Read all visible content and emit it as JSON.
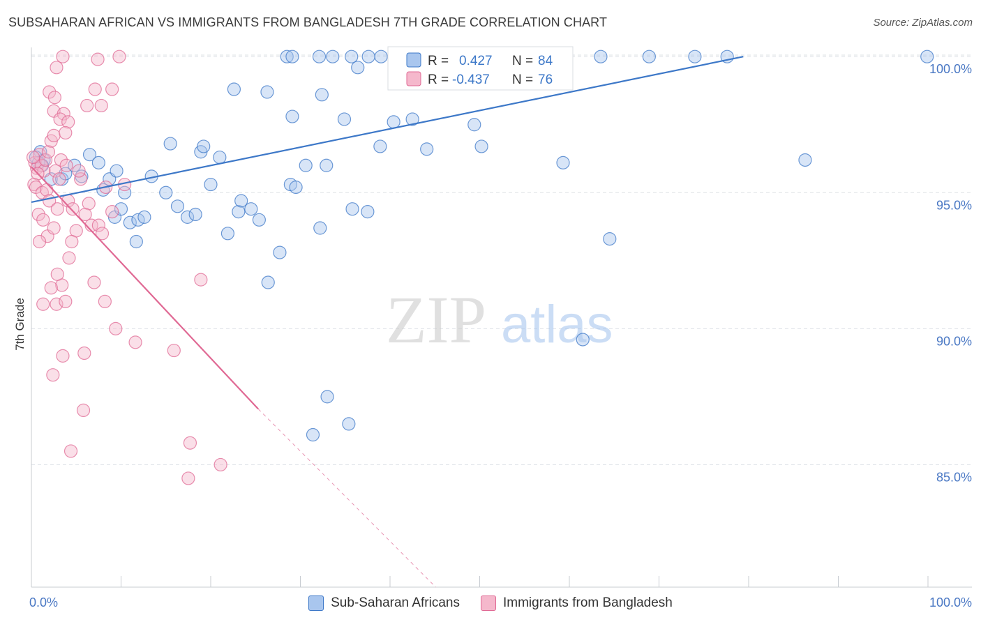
{
  "title": "SUBSAHARAN AFRICAN VS IMMIGRANTS FROM BANGLADESH 7TH GRADE CORRELATION CHART",
  "source": "Source: ZipAtlas.com",
  "watermark": {
    "zip": "ZIP",
    "atlas": "atlas"
  },
  "colors": {
    "blue": "#3d78c8",
    "blue_fill": "#a9c6ee",
    "pink": "#e06994",
    "pink_fill": "#f5b8cc",
    "grid": "#dde1e6",
    "tick_label": "#4a78c4"
  },
  "legend_top": [
    {
      "r_label": "R =",
      "r_value": "0.427",
      "n_label": "N =",
      "n_value": "84"
    },
    {
      "r_label": "R =",
      "r_value": "-0.437",
      "n_label": "N =",
      "n_value": "76"
    }
  ],
  "legend_bottom": [
    "Sub-Saharan Africans",
    "Immigrants from Bangladesh"
  ],
  "chart_data": {
    "type": "scatter",
    "title": "SUBSAHARAN AFRICAN VS IMMIGRANTS FROM BANGLADESH 7TH GRADE CORRELATION CHART",
    "xlabel": "",
    "ylabel": "7th Grade",
    "xlim": [
      0,
      100
    ],
    "ylim": [
      80.5,
      100.8
    ],
    "x_tick_labels": [
      "0.0%",
      "100.0%"
    ],
    "y_ticks": [
      85,
      90,
      95,
      100
    ],
    "y_tick_labels": [
      "85.0%",
      "90.0%",
      "95.0%",
      "100.0%"
    ],
    "grid": true,
    "legend_placement": "top-center",
    "series": [
      {
        "name": "Sub-Saharan Africans",
        "color": "#3d78c8",
        "r": 0.427,
        "n": 84,
        "trend": {
          "x": [
            0.0,
            79.4
          ],
          "y": [
            94.65,
            100.0
          ]
        },
        "points": [
          [
            1.0,
            96.5
          ],
          [
            1.4,
            96.2
          ],
          [
            0.5,
            96.3
          ],
          [
            1.2,
            96.0
          ],
          [
            0.8,
            96.1
          ],
          [
            2.2,
            95.5
          ],
          [
            3.4,
            95.5
          ],
          [
            3.8,
            95.7
          ],
          [
            4.8,
            96.0
          ],
          [
            5.6,
            95.6
          ],
          [
            6.5,
            96.4
          ],
          [
            7.5,
            96.1
          ],
          [
            8.7,
            95.5
          ],
          [
            9.3,
            94.1
          ],
          [
            10.0,
            94.4
          ],
          [
            11.0,
            93.9
          ],
          [
            11.7,
            93.2
          ],
          [
            11.9,
            94.0
          ],
          [
            12.6,
            94.1
          ],
          [
            13.4,
            95.6
          ],
          [
            15.0,
            95.0
          ],
          [
            16.3,
            94.5
          ],
          [
            17.4,
            94.1
          ],
          [
            18.3,
            94.2
          ],
          [
            18.9,
            96.5
          ],
          [
            20.0,
            95.3
          ],
          [
            21.0,
            96.3
          ],
          [
            21.9,
            93.5
          ],
          [
            23.1,
            94.3
          ],
          [
            23.4,
            94.7
          ],
          [
            24.5,
            94.4
          ],
          [
            25.4,
            94.0
          ],
          [
            26.4,
            91.7
          ],
          [
            27.7,
            92.8
          ],
          [
            28.9,
            95.3
          ],
          [
            29.5,
            95.2
          ],
          [
            30.6,
            96.0
          ],
          [
            32.2,
            93.7
          ],
          [
            32.9,
            96.0
          ],
          [
            35.8,
            94.4
          ],
          [
            37.5,
            94.3
          ],
          [
            38.9,
            96.7
          ],
          [
            40.4,
            97.6
          ],
          [
            42.5,
            97.7
          ],
          [
            44.1,
            96.6
          ],
          [
            15.5,
            96.8
          ],
          [
            19.2,
            96.7
          ],
          [
            22.6,
            98.8
          ],
          [
            26.3,
            98.7
          ],
          [
            29.1,
            97.8
          ],
          [
            32.4,
            98.6
          ],
          [
            34.9,
            97.7
          ],
          [
            36.4,
            99.6
          ],
          [
            31.4,
            86.1
          ],
          [
            33.0,
            87.5
          ],
          [
            35.4,
            86.5
          ],
          [
            32.1,
            100.0
          ],
          [
            41.0,
            100.0
          ],
          [
            47.3,
            100.0
          ],
          [
            52.6,
            100.0
          ],
          [
            57.6,
            100.0
          ],
          [
            63.5,
            100.0
          ],
          [
            68.9,
            100.0
          ],
          [
            74.0,
            100.0
          ],
          [
            77.6,
            100.0
          ],
          [
            99.9,
            100.0
          ],
          [
            28.5,
            100.0
          ],
          [
            29.1,
            100.0
          ],
          [
            33.6,
            100.0
          ],
          [
            35.7,
            100.0
          ],
          [
            37.6,
            100.0
          ],
          [
            39.0,
            100.0
          ],
          [
            53.1,
            99.1
          ],
          [
            59.3,
            96.1
          ],
          [
            64.5,
            93.3
          ],
          [
            86.3,
            96.2
          ],
          [
            61.5,
            89.6
          ],
          [
            8.0,
            95.1
          ],
          [
            9.5,
            95.8
          ],
          [
            10.4,
            95.0
          ],
          [
            44.7,
            99.1
          ],
          [
            46.7,
            99.3
          ],
          [
            49.4,
            97.5
          ],
          [
            50.2,
            96.7
          ]
        ]
      },
      {
        "name": "Immigrants from Bangladesh",
        "color": "#e06994",
        "r": -0.437,
        "n": 76,
        "trend": {
          "x": [
            0.0,
            25.3
          ],
          "y": [
            95.95,
            87.05
          ]
        },
        "trend_dashed": {
          "x": [
            25.3,
            45.1
          ],
          "y": [
            87.05,
            80.5
          ]
        },
        "points": [
          [
            0.4,
            96.1
          ],
          [
            0.6,
            95.9
          ],
          [
            0.9,
            96.4
          ],
          [
            1.1,
            96.0
          ],
          [
            1.4,
            95.8
          ],
          [
            1.6,
            96.2
          ],
          [
            0.2,
            96.3
          ],
          [
            0.7,
            95.7
          ],
          [
            1.9,
            96.5
          ],
          [
            2.2,
            96.9
          ],
          [
            2.5,
            97.1
          ],
          [
            0.3,
            95.3
          ],
          [
            0.5,
            95.2
          ],
          [
            1.2,
            95.0
          ],
          [
            1.7,
            95.1
          ],
          [
            2.0,
            94.7
          ],
          [
            2.9,
            94.4
          ],
          [
            3.3,
            96.2
          ],
          [
            3.9,
            96.0
          ],
          [
            4.1,
            94.7
          ],
          [
            4.6,
            94.4
          ],
          [
            5.5,
            95.5
          ],
          [
            6.4,
            94.6
          ],
          [
            6.0,
            94.2
          ],
          [
            5.0,
            93.6
          ],
          [
            6.7,
            93.8
          ],
          [
            7.5,
            93.8
          ],
          [
            7.9,
            93.5
          ],
          [
            8.3,
            95.2
          ],
          [
            0.8,
            94.2
          ],
          [
            1.3,
            94.0
          ],
          [
            1.8,
            93.4
          ],
          [
            0.9,
            93.2
          ],
          [
            2.5,
            93.7
          ],
          [
            3.4,
            91.6
          ],
          [
            4.2,
            92.6
          ],
          [
            2.9,
            92.0
          ],
          [
            2.2,
            91.5
          ],
          [
            1.3,
            90.9
          ],
          [
            2.8,
            90.9
          ],
          [
            3.8,
            91.0
          ],
          [
            7.0,
            91.7
          ],
          [
            8.2,
            91.0
          ],
          [
            9.4,
            90.0
          ],
          [
            11.6,
            89.5
          ],
          [
            15.9,
            89.2
          ],
          [
            3.5,
            89.0
          ],
          [
            5.9,
            89.1
          ],
          [
            2.4,
            88.3
          ],
          [
            5.8,
            87.0
          ],
          [
            4.4,
            85.5
          ],
          [
            17.5,
            84.5
          ],
          [
            17.7,
            85.8
          ],
          [
            21.1,
            85.0
          ],
          [
            18.9,
            91.8
          ],
          [
            2.0,
            98.7
          ],
          [
            2.6,
            98.5
          ],
          [
            2.5,
            98.0
          ],
          [
            3.6,
            97.9
          ],
          [
            3.2,
            97.7
          ],
          [
            4.1,
            97.6
          ],
          [
            3.8,
            97.2
          ],
          [
            6.2,
            98.2
          ],
          [
            7.8,
            98.2
          ],
          [
            7.1,
            98.8
          ],
          [
            9.0,
            98.8
          ],
          [
            2.8,
            99.6
          ],
          [
            3.5,
            100.0
          ],
          [
            7.4,
            99.9
          ],
          [
            9.8,
            100.0
          ],
          [
            2.7,
            95.8
          ],
          [
            3.1,
            95.5
          ],
          [
            4.5,
            93.2
          ],
          [
            5.3,
            95.8
          ],
          [
            9.0,
            94.3
          ],
          [
            10.4,
            95.3
          ]
        ]
      }
    ]
  }
}
